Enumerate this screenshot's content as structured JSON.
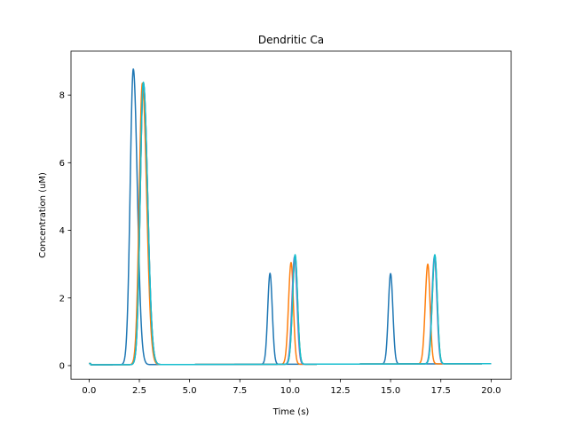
{
  "chart_data": {
    "type": "line",
    "title": "Dendritic Ca",
    "xlabel": "Time (s)",
    "ylabel": "Concentration (uM)",
    "xlim": [
      -0.9,
      21.0
    ],
    "ylim": [
      -0.4,
      9.3
    ],
    "xticks": [
      0.0,
      2.5,
      5.0,
      7.5,
      10.0,
      12.5,
      15.0,
      17.5,
      20.0
    ],
    "xtick_labels": [
      "0.0",
      "2.5",
      "5.0",
      "7.5",
      "10.0",
      "12.5",
      "15.0",
      "17.5",
      "20.0"
    ],
    "yticks": [
      0,
      2,
      4,
      6,
      8
    ],
    "ytick_labels": [
      "0",
      "2",
      "4",
      "6",
      "8"
    ],
    "grid": false,
    "series": [
      {
        "color": "#1f77b4",
        "peaks": [
          {
            "t": 2.2,
            "amp": 8.77,
            "rise": 0.22,
            "decay": 0.28
          },
          {
            "t": 9.0,
            "amp": 2.73,
            "rise": 0.16,
            "decay": 0.16
          },
          {
            "t": 15.0,
            "amp": 2.72,
            "rise": 0.16,
            "decay": 0.16
          }
        ]
      },
      {
        "color": "#ff7f0e",
        "peaks": [
          {
            "t": 2.65,
            "amp": 8.35,
            "rise": 0.22,
            "decay": 0.3
          },
          {
            "t": 10.05,
            "amp": 3.05,
            "rise": 0.18,
            "decay": 0.16
          },
          {
            "t": 16.85,
            "amp": 3.0,
            "rise": 0.18,
            "decay": 0.16
          }
        ]
      },
      {
        "color": "#2ca02c",
        "peaks": [
          {
            "t": 2.7,
            "amp": 8.35,
            "rise": 0.22,
            "decay": 0.3
          },
          {
            "t": 10.25,
            "amp": 3.25,
            "rise": 0.18,
            "decay": 0.17
          },
          {
            "t": 17.2,
            "amp": 3.25,
            "rise": 0.18,
            "decay": 0.17
          }
        ]
      },
      {
        "color": "#9467bd",
        "peaks": [
          {
            "t": 2.7,
            "amp": 8.36,
            "rise": 0.22,
            "decay": 0.3
          },
          {
            "t": 10.22,
            "amp": 3.22,
            "rise": 0.18,
            "decay": 0.17
          },
          {
            "t": 17.18,
            "amp": 3.22,
            "rise": 0.18,
            "decay": 0.17
          }
        ]
      },
      {
        "color": "#17becf",
        "peaks": [
          {
            "t": 2.7,
            "amp": 8.38,
            "rise": 0.22,
            "decay": 0.3
          },
          {
            "t": 10.25,
            "amp": 3.28,
            "rise": 0.18,
            "decay": 0.17
          },
          {
            "t": 17.2,
            "amp": 3.28,
            "rise": 0.18,
            "decay": 0.17
          }
        ]
      }
    ]
  }
}
